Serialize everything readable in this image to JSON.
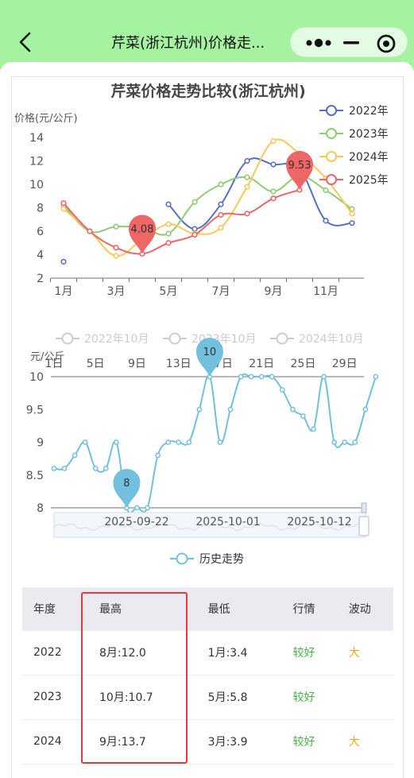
{
  "nav": {
    "title": "芹菜(浙江杭州)价格走..."
  },
  "chart_data": [
    {
      "type": "line",
      "title": "芹菜价格走势比较(浙江杭州)",
      "ylabel": "价格(元/公斤)",
      "ylim": [
        2,
        14
      ],
      "yticks": [
        "2",
        "4",
        "6",
        "8",
        "10",
        "12",
        "14"
      ],
      "xticks": [
        "1月",
        "3月",
        "5月",
        "7月",
        "9月",
        "11月"
      ],
      "categories": [
        "1月",
        "2月",
        "3月",
        "4月",
        "5月",
        "6月",
        "7月",
        "8月",
        "9月",
        "10月",
        "11月",
        "12月"
      ],
      "series": [
        {
          "name": "2022年",
          "color": "#5470c6",
          "values": [
            3.4,
            null,
            null,
            null,
            8.3,
            6.2,
            8.3,
            12.0,
            11.7,
            11.3,
            6.9,
            6.7
          ]
        },
        {
          "name": "2023年",
          "color": "#91cc75",
          "values": [
            8.2,
            6.0,
            6.4,
            6.3,
            5.8,
            8.5,
            10.0,
            10.6,
            9.4,
            10.7,
            9.5,
            7.9
          ]
        },
        {
          "name": "2024年",
          "color": "#fac858",
          "values": [
            7.9,
            6.0,
            3.9,
            5.3,
            6.6,
            5.8,
            6.3,
            9.8,
            13.7,
            12.6,
            10.5,
            7.5
          ]
        },
        {
          "name": "2025年",
          "color": "#ee6666",
          "values": [
            8.4,
            6.0,
            4.6,
            4.08,
            5.0,
            5.7,
            7.4,
            7.5,
            8.8,
            9.53,
            null,
            null
          ]
        }
      ],
      "markers": [
        {
          "label": "4.08",
          "category": "4月",
          "value": 4.08,
          "color": "#ee6666"
        },
        {
          "label": "9.53",
          "category": "10月",
          "value": 9.53,
          "color": "#ee6666"
        }
      ],
      "legend_position": "right"
    },
    {
      "type": "line",
      "ylabel": "元/公斤",
      "ylim": [
        8,
        10
      ],
      "yticks": [
        "8",
        "8.5",
        "9",
        "9.5",
        "10"
      ],
      "xticks": [
        "1日",
        "5日",
        "9日",
        "13日",
        "17日",
        "21日",
        "25日",
        "29日"
      ],
      "toggles": [
        "2022年10月",
        "2023年10月",
        "2024年10月"
      ],
      "slider_labels": [
        "2025-09-22",
        "2025-10-01",
        "2025-10-12"
      ],
      "series": [
        {
          "name": "历史走势",
          "color": "#73c0de",
          "values": [
            8.6,
            8.6,
            8.8,
            9.0,
            8.6,
            8.6,
            9.0,
            8.0,
            8.0,
            8.0,
            8.8,
            9.0,
            9.0,
            9.0,
            9.5,
            10.0,
            9.0,
            9.5,
            10.0,
            10.0,
            10.0,
            10.0,
            9.8,
            9.5,
            9.4,
            9.2,
            10.0,
            9.0,
            9.0,
            9.0,
            9.5,
            10.0
          ]
        }
      ],
      "markers": [
        {
          "label": "8",
          "day": 8,
          "value": 8,
          "color": "#73c0de"
        },
        {
          "label": "10",
          "day": 16,
          "value": 10,
          "color": "#73c0de"
        }
      ]
    }
  ],
  "table": {
    "headers": [
      "年度",
      "最高",
      "最低",
      "行情",
      "波动"
    ],
    "rows": [
      {
        "year": "2022",
        "high": "8月:12.0",
        "low": "1月:3.4",
        "trend": "较好",
        "vol": "大"
      },
      {
        "year": "2023",
        "high": "10月:10.7",
        "low": "5月:5.8",
        "trend": "较好",
        "vol": ""
      },
      {
        "year": "2024",
        "high": "9月:13.7",
        "low": "3月:3.9",
        "trend": "较好",
        "vol": "大"
      }
    ]
  }
}
